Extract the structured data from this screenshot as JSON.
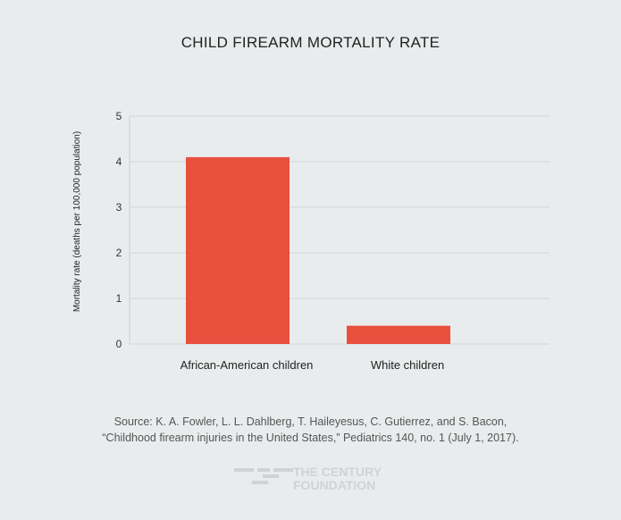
{
  "chart_data": {
    "type": "bar",
    "title": "CHILD FIREARM MORTALITY RATE",
    "ylabel": "Mortality rate  (deaths per 100,000 population)",
    "xlabel": "",
    "categories": [
      "African-American children",
      "White children"
    ],
    "values": [
      4.1,
      0.4
    ],
    "ylim": [
      0,
      5
    ],
    "yticks": [
      "0",
      "1",
      "2",
      "3",
      "4",
      "5"
    ],
    "grid": true,
    "bar_color": "#e84f3d"
  },
  "source": [
    "Source:  K. A. Fowler, L. L. Dahlberg, T. Haileyesus, C. Gutierrez, and S. Bacon,",
    "“Childhood firearm injuries in the United States,” Pediatrics 140, no. 1 (July 1, 2017)."
  ],
  "logo": {
    "line1": "THE CENTURY",
    "line2": "FOUNDATION"
  }
}
